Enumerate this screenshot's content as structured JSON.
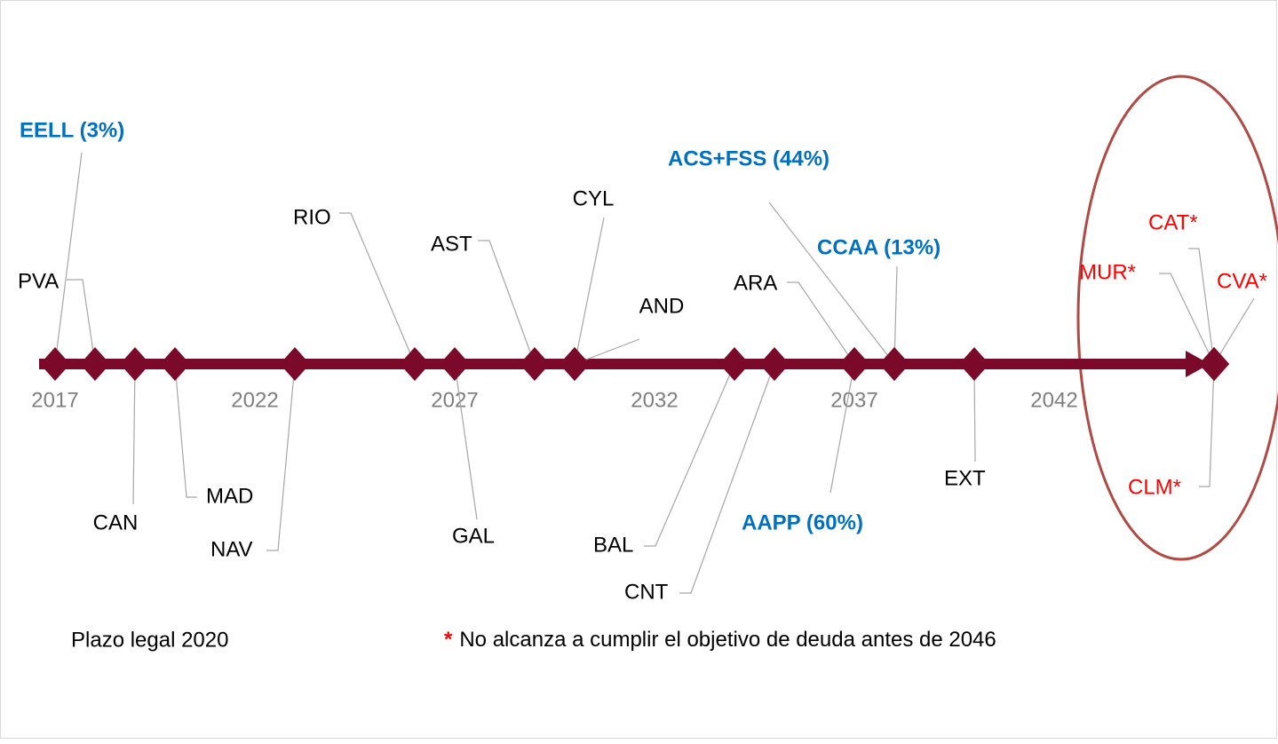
{
  "chart_data": {
    "type": "timeline",
    "xlim": [
      2016.6,
      2046
    ],
    "xticks": [
      2017,
      2022,
      2027,
      2032,
      2037,
      2042
    ],
    "axis_color": "#7b0a2a",
    "events": [
      {
        "label": "EELL (3%)",
        "x": 2017,
        "color": "#0070c0"
      },
      {
        "label": "PVA",
        "x": 2018,
        "color": "#000000"
      },
      {
        "label": "CAN",
        "x": 2019,
        "color": "#000000"
      },
      {
        "label": "MAD",
        "x": 2020,
        "color": "#000000"
      },
      {
        "label": "NAV",
        "x": 2023,
        "color": "#000000"
      },
      {
        "label": "RIO",
        "x": 2026,
        "color": "#000000"
      },
      {
        "label": "GAL",
        "x": 2027,
        "color": "#000000"
      },
      {
        "label": "AST",
        "x": 2029,
        "color": "#000000"
      },
      {
        "label": "CYL",
        "x": 2030,
        "color": "#000000"
      },
      {
        "label": "AND",
        "x": 2030,
        "color": "#000000"
      },
      {
        "label": "BAL",
        "x": 2034,
        "color": "#000000"
      },
      {
        "label": "CNT",
        "x": 2035,
        "color": "#000000"
      },
      {
        "label": "ARA",
        "x": 2037,
        "color": "#000000"
      },
      {
        "label": "AAPP (60%)",
        "x": 2037,
        "color": "#0070c0"
      },
      {
        "label": "ACS+FSS (44%)",
        "x": 2038,
        "color": "#0070c0"
      },
      {
        "label": "CCAA (13%)",
        "x": 2038,
        "color": "#0070c0"
      },
      {
        "label": "EXT",
        "x": 2040,
        "color": "#000000"
      },
      {
        "label": "CAT*",
        "x": 2046,
        "color": "#ff0000"
      },
      {
        "label": "MUR*",
        "x": 2046,
        "color": "#ff0000"
      },
      {
        "label": "CVA*",
        "x": 2046,
        "color": "#ff0000"
      },
      {
        "label": "CLM*",
        "x": 2046,
        "color": "#ff0000"
      }
    ],
    "legal_note": "Plazo legal 2020",
    "note_marker": "*",
    "note": "No alcanza a cumplir el objetivo de deuda antes de 2046"
  }
}
